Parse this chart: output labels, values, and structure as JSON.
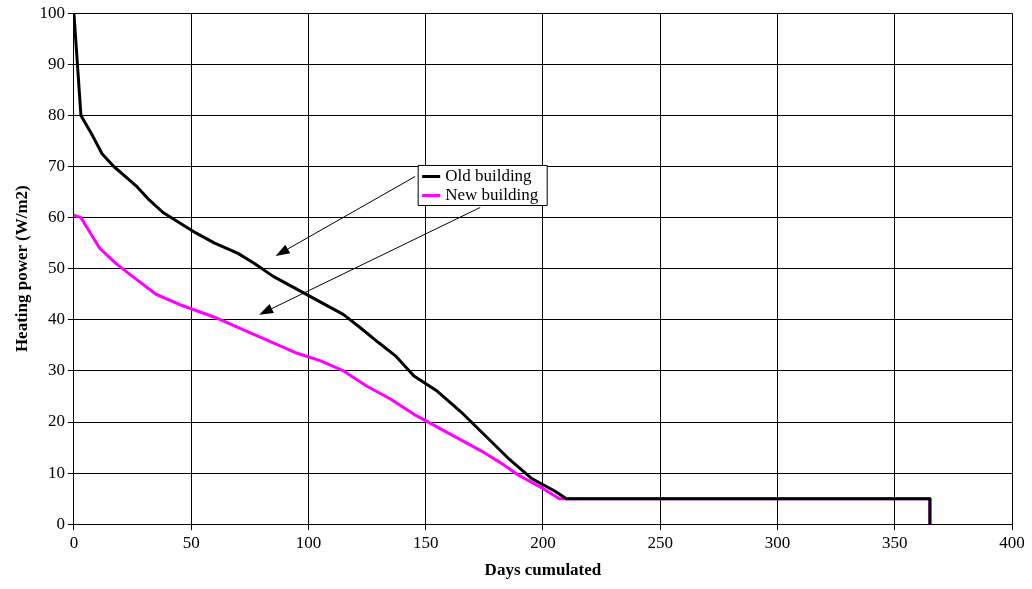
{
  "chart_data": {
    "type": "line",
    "xlabel": "Days cumulated",
    "ylabel": "Heating power (W/m2)",
    "xlim": [
      0,
      400
    ],
    "xticks": [
      0,
      50,
      100,
      150,
      200,
      250,
      300,
      350,
      400
    ],
    "ylim": [
      0,
      100
    ],
    "yticks": [
      0,
      10,
      20,
      30,
      40,
      50,
      60,
      70,
      80,
      90,
      100
    ],
    "grid": true,
    "legend": "top",
    "marker": "none",
    "line_style": "solid",
    "series": [
      {
        "name": "Old building",
        "color": "#000000",
        "x": [
          0,
          3,
          8,
          12,
          17,
          22,
          27,
          32,
          38,
          45,
          52,
          60,
          70,
          77,
          85,
          95,
          105,
          115,
          122,
          130,
          137,
          145,
          155,
          165,
          175,
          185,
          195,
          205,
          210,
          365,
          365
        ],
        "values": [
          100,
          80,
          76,
          72.5,
          70,
          68,
          66,
          63.5,
          61,
          59,
          57,
          55,
          53,
          51,
          48.5,
          46,
          43.5,
          41,
          38.5,
          35.5,
          33,
          29,
          26,
          22,
          17.5,
          13,
          9,
          6.5,
          5,
          5,
          0
        ]
      },
      {
        "name": "New building",
        "color": "#ff00ff",
        "x": [
          0,
          3,
          7,
          11,
          18,
          25,
          35,
          45,
          60,
          75,
          85,
          95,
          105,
          115,
          125,
          135,
          145,
          155,
          165,
          175,
          182,
          190,
          200,
          207,
          365,
          365
        ],
        "values": [
          60.5,
          60,
          57,
          54,
          51,
          48.5,
          45,
          43,
          40.5,
          37.5,
          35.5,
          33.5,
          32,
          30,
          27,
          24.5,
          21.5,
          19,
          16.5,
          14,
          12,
          9.5,
          7,
          5,
          5,
          0
        ]
      }
    ]
  }
}
